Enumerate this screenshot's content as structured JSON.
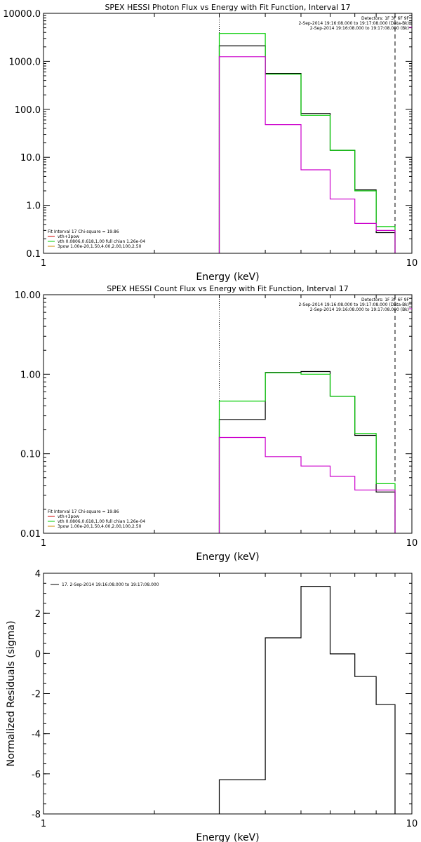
{
  "chart_data": [
    {
      "type": "line",
      "title": "SPEX HESSI Photon Flux vs Energy with Fit Function, Interval 17",
      "xlabel": "Energy (keV)",
      "ylabel": "",
      "xscale": "log",
      "yscale": "log",
      "xlim": [
        1,
        10
      ],
      "ylim": [
        0.1,
        10000
      ],
      "x_ticks": [
        {
          "v": 1,
          "label": "1"
        },
        {
          "v": 10,
          "label": "10"
        }
      ],
      "y_ticks": [
        {
          "v": 0.1,
          "label": "0.1"
        },
        {
          "v": 1,
          "label": "1.0"
        },
        {
          "v": 10,
          "label": "10.0"
        },
        {
          "v": 100,
          "label": "100.0"
        },
        {
          "v": 1000,
          "label": "1000.0"
        },
        {
          "v": 10000,
          "label": "10000.0"
        }
      ],
      "bin_edges": [
        3.0,
        4.0,
        5.0,
        6.0,
        7.0,
        8.0,
        9.0
      ],
      "series": [
        {
          "name": "",
          "color": "#000000",
          "values": [
            2100,
            560,
            82,
            14,
            2.1,
            0.27
          ]
        },
        {
          "name": "",
          "color": "#00cc00",
          "values": [
            3800,
            540,
            75,
            14,
            2.0,
            0.36
          ]
        },
        {
          "name": "",
          "color": "#cc00cc",
          "values": [
            1250,
            48,
            5.5,
            1.35,
            0.42,
            0.3
          ]
        }
      ],
      "vlines": [
        {
          "x": 3.0,
          "style": "dotted"
        },
        {
          "x": 9.0,
          "style": "dashed"
        }
      ],
      "info_right": [
        "Detectors: 1F 3F 6F 9F",
        "2-Sep-2014 19:16:08.000 to 19:17:08.000 (Data-Bk)",
        "2-Sep-2014 19:16:08.000 to 19:17:08.000 (Bk)"
      ],
      "legend_lines": [
        {
          "text": "Fit Interval 17    Chi-square = 19.86",
          "color": ""
        },
        {
          "text": "vth+3pow",
          "color": "#cc0000"
        },
        {
          "text": "vth 0.0806,0.618,1.00  full chian 1.26e-04",
          "color": "#00cc00"
        },
        {
          "text": "3pow 1.00e-20,1.50,4.00,2.00,100,2.50",
          "color": "#cc8800"
        }
      ]
    },
    {
      "type": "line",
      "title": "SPEX HESSI Count Flux vs Energy with Fit Function, Interval 17",
      "xlabel": "Energy (keV)",
      "ylabel": "",
      "xscale": "log",
      "yscale": "log",
      "xlim": [
        1,
        10
      ],
      "ylim": [
        0.01,
        10
      ],
      "x_ticks": [
        {
          "v": 1,
          "label": "1"
        },
        {
          "v": 10,
          "label": "10"
        }
      ],
      "y_ticks": [
        {
          "v": 0.01,
          "label": "0.01"
        },
        {
          "v": 0.1,
          "label": "0.10"
        },
        {
          "v": 1,
          "label": "1.00"
        },
        {
          "v": 10,
          "label": "10.00"
        }
      ],
      "bin_edges": [
        3.0,
        4.0,
        5.0,
        6.0,
        7.0,
        8.0,
        9.0
      ],
      "series": [
        {
          "name": "",
          "color": "#000000",
          "values": [
            0.27,
            1.05,
            1.08,
            0.53,
            0.17,
            0.033
          ]
        },
        {
          "name": "",
          "color": "#00cc00",
          "values": [
            0.46,
            1.04,
            1.0,
            0.53,
            0.18,
            0.042
          ]
        },
        {
          "name": "",
          "color": "#cc00cc",
          "values": [
            0.16,
            0.092,
            0.07,
            0.052,
            0.035,
            0.035
          ]
        }
      ],
      "vlines": [
        {
          "x": 3.0,
          "style": "dotted"
        },
        {
          "x": 9.0,
          "style": "dashed"
        }
      ],
      "info_right": [
        "Detectors: 1F 3F 6F 9F",
        "2-Sep-2014 19:16:08.000 to 19:17:08.000 (Data-Bk)",
        "2-Sep-2014 19:16:08.000 to 19:17:08.000 (Bk)"
      ],
      "legend_lines": [
        {
          "text": "Fit Interval 17    Chi-square = 19.86",
          "color": ""
        },
        {
          "text": "vth+3pow",
          "color": "#cc0000"
        },
        {
          "text": "vth 0.0806,0.618,1.00  full chian 1.26e-04",
          "color": "#00cc00"
        },
        {
          "text": "3pow 1.00e-20,1.50,4.00,2.00,100,2.50",
          "color": "#cc8800"
        }
      ]
    },
    {
      "type": "line",
      "title": "",
      "xlabel": "Energy (keV)",
      "ylabel": "Normalized Residuals (sigma)",
      "xscale": "log",
      "yscale": "linear",
      "xlim": [
        1,
        10
      ],
      "ylim": [
        -8,
        4
      ],
      "x_ticks": [
        {
          "v": 1,
          "label": "1"
        },
        {
          "v": 10,
          "label": "10"
        }
      ],
      "y_ticks": [
        {
          "v": -8,
          "label": "-8"
        },
        {
          "v": -6,
          "label": "-6"
        },
        {
          "v": -4,
          "label": "-4"
        },
        {
          "v": -2,
          "label": "-2"
        },
        {
          "v": 0,
          "label": "0"
        },
        {
          "v": 2,
          "label": "2"
        },
        {
          "v": 4,
          "label": "4"
        }
      ],
      "bin_edges": [
        3.0,
        4.0,
        5.0,
        6.0,
        7.0,
        8.0,
        9.0
      ],
      "series": [
        {
          "name": "17.  2-Sep-2014 19:16:08.000 to 19:17:08.000",
          "color": "#000000",
          "values": [
            -6.3,
            0.78,
            3.35,
            -0.02,
            -1.15,
            -2.55
          ]
        }
      ],
      "vlines": [],
      "info_right": [],
      "legend_lines": []
    }
  ]
}
